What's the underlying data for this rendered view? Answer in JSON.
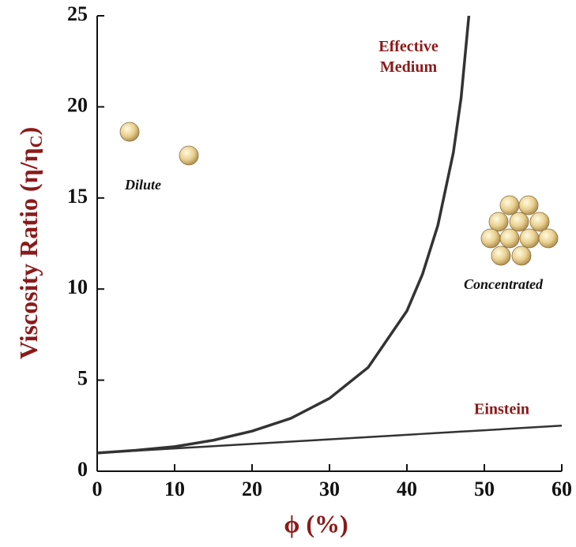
{
  "chart_data": {
    "type": "line",
    "x_label": "ϕ (%)",
    "y_label": {
      "text": "Viscosity Ratio (η/η",
      "subscript": "C",
      "end": ")"
    },
    "annotations": [
      "Dilute",
      "Concentrated"
    ],
    "x": [
      0,
      5,
      10,
      15,
      20,
      25,
      30,
      35,
      40,
      42,
      44,
      46,
      47,
      48,
      50,
      55,
      60
    ],
    "series": [
      {
        "name": "Effective Medium",
        "color": "#333333",
        "values": [
          1,
          1.15,
          1.35,
          1.7,
          2.2,
          2.9,
          4.0,
          5.7,
          8.8,
          10.8,
          13.5,
          17.5,
          20.5,
          25,
          null,
          null,
          null
        ]
      },
      {
        "name": "Einstein",
        "color": "#333333",
        "values": [
          1,
          1.125,
          1.25,
          1.375,
          1.5,
          1.625,
          1.75,
          1.875,
          2,
          2.05,
          2.1,
          2.15,
          2.175,
          2.2,
          2.25,
          2.375,
          2.5
        ]
      }
    ],
    "xlim": [
      0,
      60
    ],
    "xticks": [
      0,
      10,
      20,
      30,
      40,
      50,
      60
    ],
    "ylim": [
      0,
      25
    ],
    "yticks": [
      0,
      5,
      10,
      15,
      20,
      25
    ],
    "grid": false
  }
}
